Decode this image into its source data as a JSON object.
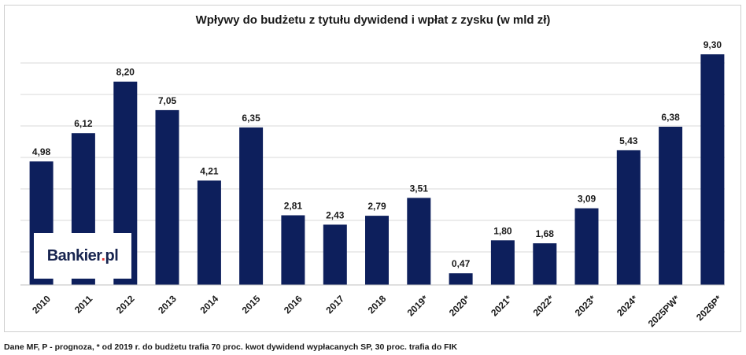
{
  "chart_data": {
    "type": "bar",
    "title": "Wpływy do budżetu z tytułu dywidend i wpłat z zysku (w mld zł)",
    "categories": [
      "2010",
      "2011",
      "2012",
      "2013",
      "2014",
      "2015",
      "2016",
      "2017",
      "2018",
      "2019*",
      "2020*",
      "2021*",
      "2022*",
      "2023*",
      "2024*",
      "2025PW*",
      "2026P*"
    ],
    "values": [
      4.98,
      6.12,
      8.2,
      7.05,
      4.21,
      6.35,
      2.81,
      2.43,
      2.79,
      3.51,
      0.47,
      1.8,
      1.68,
      3.09,
      5.43,
      6.38,
      9.3
    ],
    "labels": [
      "4,98",
      "6,12",
      "8,20",
      "7,05",
      "4,21",
      "6,35",
      "2,81",
      "2,43",
      "2,79",
      "3,51",
      "0,47",
      "1,80",
      "1,68",
      "3,09",
      "5,43",
      "6,38",
      "9,30"
    ],
    "ylim": [
      0,
      9.3
    ],
    "bar_color": "#0d1f5c",
    "grid": true,
    "grid_color": "#d9d9d9"
  },
  "logo": {
    "text_main": "Bankier",
    "text_dot": ".",
    "text_tld": "pl"
  },
  "footnote": "Dane MF, P - prognoza, * od 2019 r. do budżetu trafia 70 proc. kwot dywidend wypłacanych SP, 30 proc. trafia do FIK"
}
